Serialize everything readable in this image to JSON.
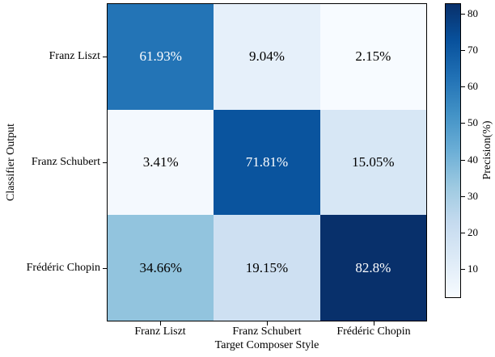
{
  "chart_data": {
    "type": "heatmap",
    "colormap": "Blues",
    "xlabel": "Target Composer Style",
    "ylabel": "Classifier Output",
    "x_categories": [
      "Franz Liszt",
      "Franz Schubert",
      "Frédéric Chopin"
    ],
    "y_categories": [
      "Franz Liszt",
      "Franz Schubert",
      "Frédéric Chopin"
    ],
    "values": [
      [
        61.93,
        9.04,
        2.15
      ],
      [
        3.41,
        71.81,
        15.05
      ],
      [
        34.66,
        19.15,
        82.8
      ]
    ],
    "cell_labels": [
      [
        "61.93%",
        "9.04%",
        "2.15%"
      ],
      [
        "3.41%",
        "71.81%",
        "15.05%"
      ],
      [
        "34.66%",
        "19.15%",
        "82.8%"
      ]
    ],
    "cell_colors": [
      [
        "#2374b6",
        "#e6f0fa",
        "#f7fbff"
      ],
      [
        "#f4f9fe",
        "#0a549e",
        "#d7e7f5"
      ],
      [
        "#92c4de",
        "#cee0f2",
        "#08306b"
      ]
    ],
    "cell_text_colors": [
      [
        "#ffffff",
        "#000000",
        "#000000"
      ],
      [
        "#000000",
        "#ffffff",
        "#000000"
      ],
      [
        "#000000",
        "#000000",
        "#ffffff"
      ]
    ],
    "colorbar": {
      "label": "Precision(%)",
      "vmin": 2.15,
      "vmax": 82.8,
      "ticks": [
        80,
        70,
        60,
        50,
        40,
        30,
        20,
        10
      ],
      "gradient_top_to_bottom": [
        "#08306b",
        "#08519c",
        "#2171b5",
        "#4292c6",
        "#6baed6",
        "#9ecae1",
        "#c6dbef",
        "#deebf7",
        "#f7fbff"
      ]
    },
    "axis_color": "#000000",
    "background_color": "#ffffff",
    "legend_position": "right-colorbar",
    "grid": false
  }
}
